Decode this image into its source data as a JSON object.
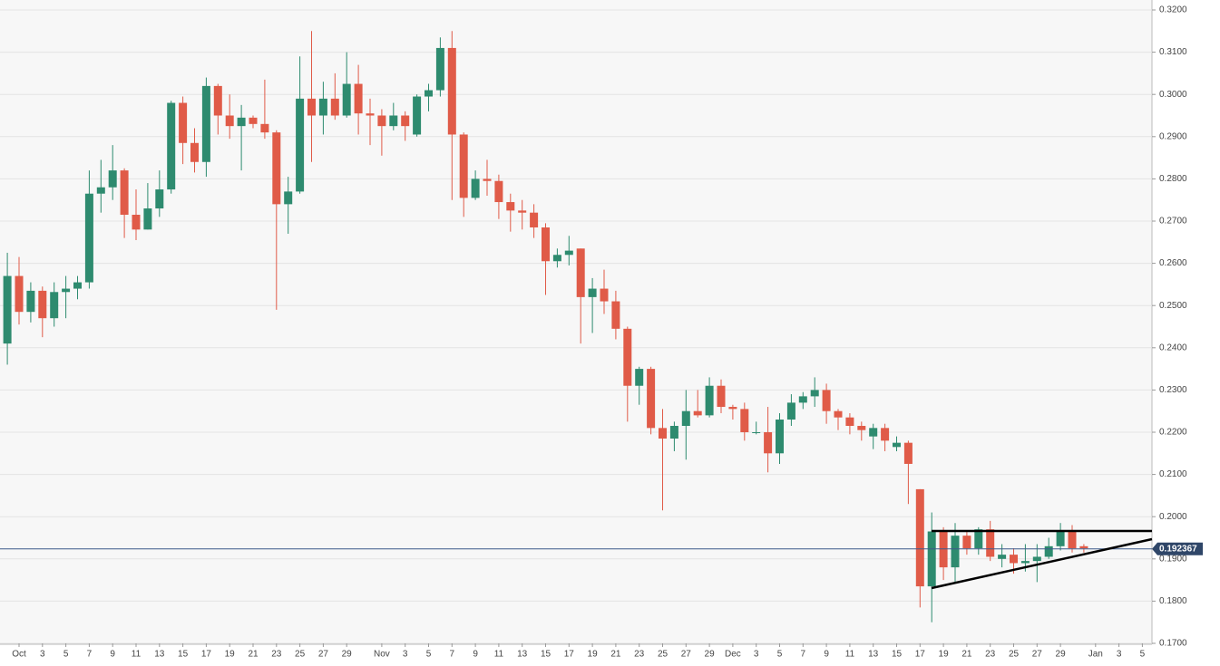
{
  "chart_data": {
    "type": "candlestick",
    "categories": [
      null,
      "Oct",
      null,
      "3",
      null,
      "5",
      null,
      "7",
      null,
      "9",
      null,
      "11",
      null,
      "13",
      null,
      "15",
      null,
      "17",
      null,
      "19",
      null,
      "21",
      null,
      "23",
      null,
      "25",
      null,
      "27",
      null,
      "29",
      null,
      null,
      "Nov",
      null,
      "3",
      null,
      "5",
      null,
      "7",
      null,
      "9",
      null,
      "11",
      null,
      "13",
      null,
      "15",
      null,
      "17",
      null,
      "19",
      null,
      "21",
      null,
      "23",
      null,
      "25",
      null,
      "27",
      null,
      "29",
      null,
      "Dec",
      null,
      "3",
      null,
      "5",
      null,
      "7",
      null,
      "9",
      null,
      "11",
      null,
      "13",
      null,
      "15",
      null,
      "17",
      null,
      "19",
      null,
      "21",
      null,
      "23",
      null,
      "25",
      null,
      "27",
      null,
      "29",
      null,
      null,
      "Jan",
      null,
      "3",
      null,
      "5"
    ],
    "open": [
      0.241,
      0.257,
      0.2485,
      0.2535,
      0.247,
      0.2532,
      0.254,
      0.2555,
      0.2765,
      0.278,
      0.282,
      0.2715,
      0.268,
      0.273,
      0.2775,
      0.298,
      0.2885,
      0.284,
      0.302,
      0.295,
      0.2925,
      0.2945,
      0.293,
      0.291,
      0.274,
      0.277,
      0.299,
      0.295,
      0.299,
      0.295,
      0.3025,
      0.2955,
      0.295,
      0.2925,
      0.295,
      0.2905,
      0.2995,
      0.301,
      0.311,
      0.2905,
      0.2755,
      0.28,
      0.2795,
      0.2745,
      0.2725,
      0.272,
      0.2685,
      0.2605,
      0.262,
      0.2635,
      0.252,
      0.254,
      0.251,
      0.2445,
      0.231,
      0.235,
      0.221,
      0.2185,
      0.2215,
      0.225,
      0.224,
      0.231,
      0.226,
      0.2255,
      0.2198,
      0.22,
      0.215,
      0.223,
      0.227,
      0.2285,
      0.23,
      0.225,
      0.2235,
      0.2215,
      0.219,
      0.221,
      0.2165,
      0.2175,
      0.2065,
      0.1835,
      0.1965,
      0.188,
      0.1955,
      0.1925,
      0.197,
      0.19,
      0.191,
      0.189,
      0.1895,
      0.1905,
      0.193,
      0.1965,
      0.193,
      null,
      null,
      null,
      null,
      null
    ],
    "high": [
      0.2625,
      0.2615,
      0.2555,
      0.2545,
      0.2555,
      0.257,
      0.257,
      0.282,
      0.2845,
      0.288,
      0.2825,
      0.2775,
      0.279,
      0.282,
      0.2985,
      0.2995,
      0.292,
      0.304,
      0.3025,
      0.3,
      0.2975,
      0.295,
      0.3035,
      0.2915,
      0.2805,
      0.309,
      0.315,
      0.303,
      0.305,
      0.31,
      0.307,
      0.299,
      0.2965,
      0.298,
      0.296,
      0.3,
      0.3025,
      0.3135,
      0.315,
      0.291,
      0.282,
      0.2845,
      0.281,
      0.2765,
      0.275,
      0.274,
      0.2695,
      0.2635,
      0.2665,
      0.2635,
      0.2565,
      0.2585,
      0.2535,
      0.245,
      0.2355,
      0.2355,
      0.2255,
      0.2225,
      0.23,
      0.23,
      0.233,
      0.2325,
      0.2265,
      0.227,
      0.2225,
      0.226,
      0.2245,
      0.229,
      0.2295,
      0.233,
      0.2315,
      0.2255,
      0.2245,
      0.2225,
      0.222,
      0.222,
      0.219,
      0.218,
      0.2065,
      0.201,
      0.1975,
      0.1985,
      0.1965,
      0.1975,
      0.199,
      0.1935,
      0.1925,
      0.1935,
      0.1935,
      0.195,
      0.1985,
      0.198,
      0.1935,
      null,
      null,
      null,
      null,
      null
    ],
    "low": [
      0.236,
      0.2455,
      0.246,
      0.2425,
      0.245,
      0.247,
      0.2515,
      0.254,
      0.272,
      0.275,
      0.266,
      0.2655,
      0.268,
      0.271,
      0.2765,
      0.2835,
      0.2815,
      0.2805,
      0.2905,
      0.2895,
      0.282,
      0.292,
      0.2895,
      0.249,
      0.267,
      0.2765,
      0.284,
      0.2905,
      0.294,
      0.2945,
      0.2905,
      0.288,
      0.2855,
      0.2915,
      0.289,
      0.29,
      0.296,
      0.2995,
      0.275,
      0.271,
      0.275,
      0.276,
      0.2705,
      0.2675,
      0.268,
      0.266,
      0.2525,
      0.259,
      0.2595,
      0.241,
      0.2435,
      0.248,
      0.242,
      0.2225,
      0.2265,
      0.2195,
      0.2015,
      0.2155,
      0.2135,
      0.2235,
      0.2235,
      0.2245,
      0.223,
      0.218,
      0.2195,
      0.2105,
      0.2125,
      0.2215,
      0.2255,
      0.226,
      0.222,
      0.2205,
      0.2195,
      0.218,
      0.216,
      0.2155,
      0.2155,
      0.203,
      0.1785,
      0.175,
      0.185,
      0.1845,
      0.191,
      0.191,
      0.1895,
      0.188,
      0.1865,
      0.187,
      0.1845,
      0.19,
      0.192,
      0.1915,
      0.1915,
      null,
      null,
      null,
      null,
      null
    ],
    "close": [
      0.257,
      0.2485,
      0.2535,
      0.247,
      0.2532,
      0.254,
      0.2555,
      0.2765,
      0.278,
      0.282,
      0.2715,
      0.268,
      0.273,
      0.2775,
      0.298,
      0.2885,
      0.284,
      0.302,
      0.295,
      0.2925,
      0.2945,
      0.293,
      0.291,
      0.274,
      0.277,
      0.299,
      0.295,
      0.299,
      0.295,
      0.3025,
      0.2955,
      0.295,
      0.2925,
      0.295,
      0.2925,
      0.2995,
      0.301,
      0.311,
      0.2905,
      0.2755,
      0.28,
      0.2795,
      0.2745,
      0.2725,
      0.272,
      0.2685,
      0.2605,
      0.262,
      0.263,
      0.252,
      0.254,
      0.251,
      0.2445,
      0.231,
      0.235,
      0.221,
      0.2185,
      0.2215,
      0.225,
      0.224,
      0.231,
      0.226,
      0.2255,
      0.22,
      0.22,
      0.215,
      0.223,
      0.227,
      0.2285,
      0.23,
      0.225,
      0.2235,
      0.2215,
      0.2205,
      0.221,
      0.218,
      0.2175,
      0.2125,
      0.1835,
      0.1965,
      0.188,
      0.1955,
      0.1925,
      0.197,
      0.1905,
      0.191,
      0.189,
      0.1895,
      0.1905,
      0.193,
      0.1965,
      0.1925,
      0.1925,
      null,
      null,
      null,
      null,
      null
    ],
    "up_color": "#2e8b6f",
    "down_color": "#e05b48",
    "ylim": [
      0.17,
      0.32
    ],
    "yticks": [
      {
        "value": 0.17,
        "label": "0.1700"
      },
      {
        "value": 0.18,
        "label": "0.1800"
      },
      {
        "value": 0.19,
        "label": "0.1900"
      },
      {
        "value": 0.2,
        "label": "0.2000"
      },
      {
        "value": 0.21,
        "label": "0.2100"
      },
      {
        "value": 0.22,
        "label": "0.2200"
      },
      {
        "value": 0.23,
        "label": "0.2300"
      },
      {
        "value": 0.24,
        "label": "0.2400"
      },
      {
        "value": 0.25,
        "label": "0.2500"
      },
      {
        "value": 0.26,
        "label": "0.2600"
      },
      {
        "value": 0.27,
        "label": "0.2700"
      },
      {
        "value": 0.28,
        "label": "0.2800"
      },
      {
        "value": 0.29,
        "label": "0.2900"
      },
      {
        "value": 0.3,
        "label": "0.3000"
      },
      {
        "value": 0.31,
        "label": "0.3100"
      },
      {
        "value": 0.32,
        "label": "0.3200"
      }
    ],
    "grid": true,
    "last_price": 0.192367
  }
}
